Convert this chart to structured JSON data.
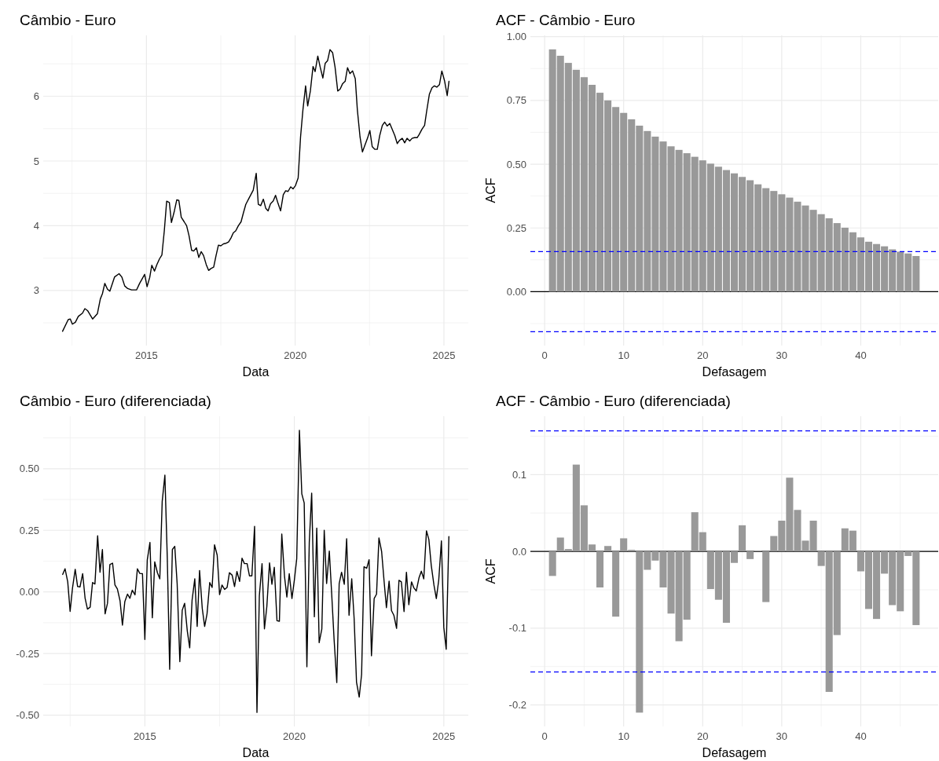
{
  "chart_data": [
    {
      "type": "line",
      "title": "Câmbio - Euro",
      "xlabel": "Data",
      "color": "#000000",
      "grid": true,
      "line_style": "solid",
      "xlim": [
        2011.53,
        2025.82
      ],
      "ylim": [
        2.15,
        6.94
      ],
      "xticks": [
        {
          "value": 2012.5,
          "label": null
        },
        2015,
        {
          "value": 2017.5,
          "label": null
        },
        2020,
        {
          "value": 2022.5,
          "label": null
        },
        2025
      ],
      "yticks": [
        {
          "value": 2.5,
          "label": null
        },
        3,
        {
          "value": 3.5,
          "label": null
        },
        4,
        {
          "value": 4.5,
          "label": null
        },
        5,
        {
          "value": 5.5,
          "label": null
        },
        6,
        {
          "value": 6.5,
          "label": null
        }
      ],
      "x": [
        2012.18,
        2012.37,
        2012.44,
        2012.51,
        2012.61,
        2012.71,
        2012.85,
        2012.93,
        2013.02,
        2013.19,
        2013.35,
        2013.45,
        2013.52,
        2013.6,
        2013.69,
        2013.77,
        2013.93,
        2014.08,
        2014.17,
        2014.27,
        2014.37,
        2014.5,
        2014.67,
        2014.77,
        2014.94,
        2015.02,
        2015.11,
        2015.18,
        2015.27,
        2015.35,
        2015.44,
        2015.52,
        2015.6,
        2015.68,
        2015.77,
        2015.84,
        2015.94,
        2016.02,
        2016.09,
        2016.17,
        2016.27,
        2016.35,
        2016.43,
        2016.52,
        2016.59,
        2016.68,
        2016.76,
        2016.84,
        2016.92,
        2017.01,
        2017.09,
        2017.17,
        2017.26,
        2017.34,
        2017.42,
        2017.5,
        2017.59,
        2017.68,
        2017.76,
        2017.84,
        2017.92,
        2018,
        2018.09,
        2018.18,
        2018.26,
        2018.34,
        2018.43,
        2018.51,
        2018.59,
        2018.69,
        2018.76,
        2018.84,
        2018.93,
        2019.01,
        2019.09,
        2019.17,
        2019.26,
        2019.34,
        2019.42,
        2019.51,
        2019.6,
        2019.68,
        2019.76,
        2019.85,
        2019.93,
        2020.01,
        2020.1,
        2020.18,
        2020.26,
        2020.35,
        2020.42,
        2020.51,
        2020.6,
        2020.67,
        2020.76,
        2020.84,
        2020.93,
        2021.01,
        2021.09,
        2021.17,
        2021.26,
        2021.34,
        2021.43,
        2021.51,
        2021.59,
        2021.68,
        2021.76,
        2021.84,
        2021.93,
        2022.02,
        2022.09,
        2022.18,
        2022.26,
        2022.34,
        2022.43,
        2022.51,
        2022.59,
        2022.68,
        2022.76,
        2022.84,
        2022.93,
        2023.01,
        2023.09,
        2023.18,
        2023.26,
        2023.35,
        2023.43,
        2023.51,
        2023.6,
        2023.68,
        2023.76,
        2023.85,
        2023.93,
        2024.01,
        2024.1,
        2024.17,
        2024.26,
        2024.35,
        2024.42,
        2024.51,
        2024.6,
        2024.68,
        2024.76,
        2024.85,
        2024.93,
        2025.02,
        2025.11,
        2025.17
      ],
      "values": [
        2.37,
        2.55,
        2.56,
        2.48,
        2.51,
        2.6,
        2.65,
        2.72,
        2.69,
        2.56,
        2.64,
        2.87,
        2.95,
        3.11,
        3.02,
        2.99,
        3.21,
        3.26,
        3.21,
        3.07,
        3.03,
        3.01,
        3.01,
        3.11,
        3.25,
        3.06,
        3.2,
        3.39,
        3.3,
        3.4,
        3.49,
        3.55,
        3.92,
        4.38,
        4.36,
        4.05,
        4.23,
        4.4,
        4.39,
        4.13,
        4.06,
        4.0,
        3.85,
        3.62,
        3.61,
        3.66,
        3.51,
        3.6,
        3.54,
        3.4,
        3.31,
        3.34,
        3.36,
        3.54,
        3.7,
        3.69,
        3.72,
        3.73,
        3.75,
        3.81,
        3.89,
        3.92,
        4.0,
        4.06,
        4.2,
        4.33,
        4.41,
        4.48,
        4.55,
        4.81,
        4.33,
        4.31,
        4.41,
        4.27,
        4.23,
        4.34,
        4.38,
        4.47,
        4.35,
        4.23,
        4.48,
        4.54,
        4.53,
        4.6,
        4.57,
        4.62,
        4.74,
        5.37,
        5.79,
        6.16,
        5.85,
        6.08,
        6.46,
        6.38,
        6.62,
        6.45,
        6.28,
        6.51,
        6.55,
        6.72,
        6.67,
        6.45,
        6.08,
        6.11,
        6.19,
        6.23,
        6.44,
        6.35,
        6.39,
        6.27,
        5.79,
        5.37,
        5.14,
        5.24,
        5.35,
        5.47,
        5.22,
        5.18,
        5.18,
        5.39,
        5.55,
        5.6,
        5.54,
        5.58,
        5.49,
        5.39,
        5.27,
        5.32,
        5.35,
        5.28,
        5.35,
        5.31,
        5.35,
        5.36,
        5.36,
        5.41,
        5.49,
        5.55,
        5.77,
        6.03,
        6.13,
        6.16,
        6.14,
        6.18,
        6.39,
        6.24,
        6.01,
        6.23
      ]
    },
    {
      "type": "bar",
      "title": "ACF - Câmbio - Euro",
      "xlabel": "Defasagem",
      "ylabel": "ACF",
      "color": "#999999",
      "grid": true,
      "xlim": [
        -1.8,
        49.8
      ],
      "ylim": [
        -0.211,
        1.005
      ],
      "xticks": [
        0,
        {
          "value": 5,
          "label": null
        },
        10,
        {
          "value": 15,
          "label": null
        },
        20,
        {
          "value": 25,
          "label": null
        },
        30,
        {
          "value": 35,
          "label": null
        },
        40,
        {
          "value": 45,
          "label": null
        }
      ],
      "yticks": [
        {
          "value": -0.125,
          "label": null
        },
        {
          "value": 0,
          "label": "0.00"
        },
        {
          "value": 0.125,
          "label": null
        },
        {
          "value": 0.25,
          "label": "0.25"
        },
        {
          "value": 0.375,
          "label": null
        },
        {
          "value": 0.5,
          "label": "0.50"
        },
        {
          "value": 0.625,
          "label": null
        },
        {
          "value": 0.75,
          "label": "0.75"
        },
        {
          "value": 0.875,
          "label": null
        },
        {
          "value": 1,
          "label": "1.00"
        }
      ],
      "x": [
        1,
        2,
        3,
        4,
        5,
        6,
        7,
        8,
        9,
        10,
        11,
        12,
        13,
        14,
        15,
        16,
        17,
        18,
        19,
        20,
        21,
        22,
        23,
        24,
        25,
        26,
        27,
        28,
        29,
        30,
        31,
        32,
        33,
        34,
        35,
        36,
        37,
        38,
        39,
        40,
        41,
        42,
        43,
        44,
        45,
        46,
        47
      ],
      "values": [
        0.95,
        0.925,
        0.897,
        0.87,
        0.841,
        0.811,
        0.78,
        0.75,
        0.724,
        0.701,
        0.676,
        0.651,
        0.63,
        0.608,
        0.589,
        0.57,
        0.556,
        0.543,
        0.529,
        0.515,
        0.502,
        0.49,
        0.477,
        0.464,
        0.45,
        0.437,
        0.421,
        0.406,
        0.395,
        0.382,
        0.369,
        0.353,
        0.338,
        0.321,
        0.304,
        0.288,
        0.269,
        0.251,
        0.233,
        0.213,
        0.196,
        0.187,
        0.178,
        0.166,
        0.157,
        0.15,
        0.14
      ],
      "ref_lines": [
        {
          "axis": "y",
          "value": 0,
          "color": "#000000",
          "line_style": "solid"
        },
        {
          "axis": "y",
          "value": 0.157,
          "color": "#0000ff",
          "line_style": "dashed"
        },
        {
          "axis": "y",
          "value": -0.157,
          "color": "#0000ff",
          "line_style": "dashed"
        }
      ]
    },
    {
      "type": "line",
      "title": "Câmbio - Euro (diferenciada)",
      "xlabel": "Data",
      "color": "#000000",
      "grid": true,
      "line_style": "solid",
      "xlim": [
        2011.6,
        2025.82
      ],
      "ylim": [
        -0.546,
        0.713
      ],
      "xticks": [
        {
          "value": 2012.5,
          "label": null
        },
        2015,
        {
          "value": 2017.5,
          "label": null
        },
        2020,
        {
          "value": 2022.5,
          "label": null
        },
        2025
      ],
      "yticks": [
        {
          "value": -0.5,
          "label": "-0.50"
        },
        {
          "value": -0.375,
          "label": null
        },
        {
          "value": -0.25,
          "label": "-0.25"
        },
        {
          "value": -0.125,
          "label": null
        },
        {
          "value": 0,
          "label": "0.00"
        },
        {
          "value": 0.125,
          "label": null
        },
        {
          "value": 0.25,
          "label": "0.25"
        },
        {
          "value": 0.375,
          "label": null
        },
        {
          "value": 0.5,
          "label": "0.50"
        },
        {
          "value": 0.625,
          "label": null
        }
      ],
      "x": [
        2012.25,
        2012.33,
        2012.42,
        2012.5,
        2012.58,
        2012.67,
        2012.75,
        2012.83,
        2012.92,
        2013,
        2013.08,
        2013.17,
        2013.25,
        2013.33,
        2013.42,
        2013.5,
        2013.58,
        2013.67,
        2013.75,
        2013.83,
        2013.92,
        2014,
        2014.08,
        2014.17,
        2014.25,
        2014.33,
        2014.42,
        2014.5,
        2014.58,
        2014.67,
        2014.75,
        2014.83,
        2014.92,
        2015,
        2015.08,
        2015.17,
        2015.25,
        2015.33,
        2015.42,
        2015.5,
        2015.58,
        2015.67,
        2015.75,
        2015.83,
        2015.92,
        2016,
        2016.08,
        2016.17,
        2016.25,
        2016.33,
        2016.42,
        2016.5,
        2016.58,
        2016.67,
        2016.75,
        2016.83,
        2016.92,
        2017,
        2017.08,
        2017.17,
        2017.25,
        2017.33,
        2017.42,
        2017.5,
        2017.58,
        2017.67,
        2017.75,
        2017.83,
        2017.92,
        2018,
        2018.08,
        2018.17,
        2018.25,
        2018.33,
        2018.42,
        2018.5,
        2018.58,
        2018.67,
        2018.75,
        2018.83,
        2018.92,
        2019,
        2019.08,
        2019.17,
        2019.25,
        2019.33,
        2019.42,
        2019.5,
        2019.58,
        2019.67,
        2019.75,
        2019.83,
        2019.92,
        2020,
        2020.08,
        2020.17,
        2020.25,
        2020.33,
        2020.42,
        2020.5,
        2020.58,
        2020.67,
        2020.75,
        2020.83,
        2020.92,
        2021,
        2021.08,
        2021.17,
        2021.25,
        2021.33,
        2021.42,
        2021.5,
        2021.58,
        2021.67,
        2021.75,
        2021.83,
        2021.92,
        2022,
        2022.08,
        2022.17,
        2022.25,
        2022.33,
        2022.42,
        2022.5,
        2022.58,
        2022.67,
        2022.75,
        2022.83,
        2022.92,
        2023,
        2023.08,
        2023.17,
        2023.25,
        2023.33,
        2023.42,
        2023.5,
        2023.58,
        2023.67,
        2023.75,
        2023.83,
        2023.92,
        2024,
        2024.08,
        2024.17,
        2024.25,
        2024.33,
        2024.42,
        2024.5,
        2024.58,
        2024.67,
        2024.75,
        2024.83,
        2024.92,
        2025,
        2025.08,
        2025.17
      ],
      "values": [
        0.071,
        0.094,
        0.041,
        -0.079,
        0.016,
        0.092,
        0.022,
        0.02,
        0.074,
        -0.025,
        -0.07,
        -0.062,
        0.038,
        0.032,
        0.228,
        0.08,
        0.172,
        -0.089,
        -0.046,
        0.111,
        0.117,
        0.028,
        0.012,
        -0.036,
        -0.135,
        -0.039,
        -0.009,
        -0.026,
        0.007,
        -0.012,
        0.094,
        0.075,
        0.074,
        -0.193,
        0.129,
        0.201,
        -0.105,
        0.122,
        0.078,
        0.053,
        0.367,
        0.474,
        0.139,
        -0.314,
        0.172,
        0.185,
        0.034,
        -0.283,
        -0.074,
        -0.046,
        -0.159,
        -0.227,
        -0.033,
        0.053,
        -0.14,
        0.087,
        -0.067,
        -0.14,
        -0.089,
        0.038,
        0.018,
        0.191,
        0.149,
        -0.011,
        0.028,
        0.01,
        0.018,
        0.078,
        0.068,
        0.022,
        0.083,
        0.043,
        0.137,
        0.115,
        0.115,
        0.065,
        0.065,
        0.266,
        -0.489,
        -0.015,
        0.115,
        -0.15,
        -0.06,
        0.118,
        0.031,
        0.1,
        -0.117,
        -0.119,
        0.235,
        0.065,
        -0.021,
        0.074,
        -0.027,
        0.047,
        0.135,
        0.656,
        0.398,
        0.361,
        -0.304,
        0.201,
        0.401,
        -0.101,
        0.259,
        -0.206,
        -0.15,
        0.25,
        0.034,
        0.166,
        -0.009,
        -0.193,
        -0.368,
        0.034,
        0.08,
        0.031,
        0.216,
        -0.095,
        0.053,
        -0.107,
        -0.366,
        -0.427,
        -0.335,
        0.102,
        0.096,
        0.131,
        -0.259,
        -0.027,
        -0.009,
        0.219,
        0.164,
        0.047,
        -0.064,
        0.044,
        -0.076,
        -0.095,
        -0.148,
        0.047,
        0.041,
        -0.08,
        0.08,
        -0.052,
        0.041,
        0.016,
        0.004,
        0.057,
        0.084,
        0.053,
        0.248,
        0.213,
        0.108,
        0.028,
        -0.027,
        0.047,
        0.207,
        -0.144,
        -0.233,
        0.225
      ]
    },
    {
      "type": "bar",
      "title": "ACF - Câmbio - Euro (diferenciada)",
      "xlabel": "Defasagem",
      "ylabel": "ACF",
      "color": "#999999",
      "grid": true,
      "xlim": [
        -1.8,
        49.8
      ],
      "ylim": [
        -0.228,
        0.176
      ],
      "xticks": [
        0,
        {
          "value": 5,
          "label": null
        },
        10,
        {
          "value": 15,
          "label": null
        },
        20,
        {
          "value": 25,
          "label": null
        },
        30,
        {
          "value": 35,
          "label": null
        },
        40,
        {
          "value": 45,
          "label": null
        }
      ],
      "yticks": [
        -0.2,
        {
          "value": -0.15,
          "label": null
        },
        -0.1,
        {
          "value": -0.05,
          "label": null
        },
        {
          "value": 0,
          "label": "0.0"
        },
        {
          "value": 0.05,
          "label": null
        },
        0.1,
        {
          "value": 0.15,
          "label": null
        }
      ],
      "x": [
        1,
        2,
        3,
        4,
        5,
        6,
        7,
        8,
        9,
        10,
        11,
        12,
        13,
        14,
        15,
        16,
        17,
        18,
        19,
        20,
        21,
        22,
        23,
        24,
        25,
        26,
        27,
        28,
        29,
        30,
        31,
        32,
        33,
        34,
        35,
        36,
        37,
        38,
        39,
        40,
        41,
        42,
        43,
        44,
        45,
        46,
        47
      ],
      "values": [
        -0.032,
        0.018,
        0.003,
        0.113,
        0.06,
        0.009,
        -0.047,
        0.007,
        -0.085,
        0.017,
        0.002,
        -0.21,
        -0.024,
        -0.012,
        -0.047,
        -0.081,
        -0.117,
        -0.089,
        0.051,
        0.025,
        -0.049,
        -0.063,
        -0.093,
        -0.015,
        0.034,
        -0.01,
        0.001,
        -0.066,
        0.02,
        0.04,
        0.096,
        0.054,
        0.014,
        0.04,
        -0.019,
        -0.183,
        -0.109,
        0.03,
        0.027,
        -0.026,
        -0.075,
        -0.088,
        -0.029,
        -0.07,
        -0.078,
        -0.006,
        -0.096
      ],
      "ref_lines": [
        {
          "axis": "y",
          "value": 0,
          "color": "#000000",
          "line_style": "solid"
        },
        {
          "axis": "y",
          "value": 0.157,
          "color": "#0000ff",
          "line_style": "dashed"
        },
        {
          "axis": "y",
          "value": -0.157,
          "color": "#0000ff",
          "line_style": "dashed"
        }
      ]
    }
  ]
}
